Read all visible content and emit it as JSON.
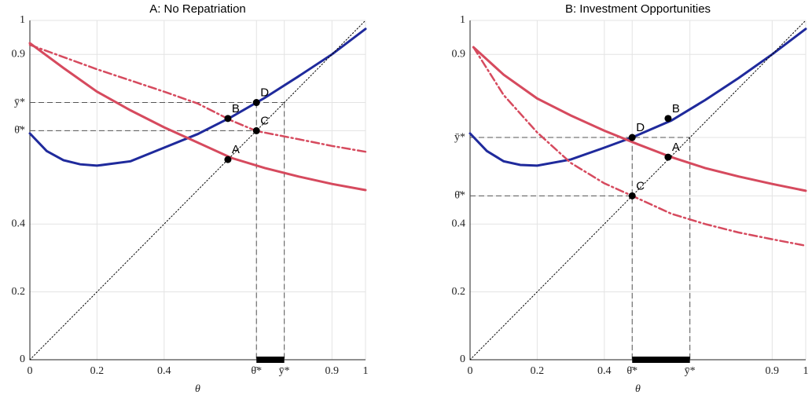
{
  "chart_data": [
    {
      "type": "line",
      "title": "A: No Repatriation",
      "xlabel": "θ",
      "xlim": [
        0,
        1
      ],
      "ylim": [
        0,
        1
      ],
      "grid": true,
      "xticks": [
        0,
        0.2,
        0.4,
        {
          "value": 0.675,
          "label": "θ̄*"
        },
        {
          "value": 0.758,
          "label": "ȳ*"
        },
        0.9,
        1
      ],
      "yticks": [
        0,
        0.2,
        0.4,
        {
          "value": 0.675,
          "label": "θ̄*"
        },
        {
          "value": 0.758,
          "label": "ȳ*"
        },
        0.9,
        1
      ],
      "series": [
        {
          "color": "#1f2a9c",
          "style": "solid",
          "x": [
            0,
            0.05,
            0.1,
            0.15,
            0.2,
            0.3,
            0.4,
            0.5,
            0.6,
            0.7,
            0.8,
            0.9,
            1
          ],
          "values": [
            0.667,
            0.615,
            0.588,
            0.576,
            0.572,
            0.585,
            0.625,
            0.665,
            0.715,
            0.772,
            0.835,
            0.9,
            0.975
          ]
        },
        {
          "color": "#d64a5e",
          "style": "solid",
          "x": [
            0,
            0.1,
            0.2,
            0.3,
            0.4,
            0.5,
            0.6,
            0.7,
            0.8,
            0.9,
            1
          ],
          "values": [
            0.933,
            0.86,
            0.79,
            0.735,
            0.685,
            0.64,
            0.595,
            0.565,
            0.54,
            0.518,
            0.5
          ]
        },
        {
          "color": "#d64a5e",
          "style": "dashdot",
          "x": [
            0,
            0.2,
            0.4,
            0.5,
            0.6,
            0.675,
            0.8,
            0.9,
            1
          ],
          "values": [
            0.928,
            0.856,
            0.79,
            0.755,
            0.705,
            0.674,
            0.65,
            0.63,
            0.613
          ]
        },
        {
          "color": "#000000",
          "style": "dotted",
          "x": [
            0,
            1
          ],
          "values": [
            0,
            1
          ]
        }
      ],
      "points": [
        {
          "label": "A",
          "x": 0.59,
          "y": 0.59
        },
        {
          "label": "B",
          "x": 0.59,
          "y": 0.711
        },
        {
          "label": "C",
          "x": 0.675,
          "y": 0.675
        },
        {
          "label": "D",
          "x": 0.675,
          "y": 0.758
        }
      ]
    },
    {
      "type": "line",
      "title": "B: Investment Opportunities",
      "xlabel": "θ",
      "xlim": [
        0,
        1
      ],
      "ylim": [
        0,
        1
      ],
      "grid": true,
      "xticks": [
        0,
        0.2,
        0.4,
        {
          "value": 0.483,
          "label": "θ̄*"
        },
        {
          "value": 0.655,
          "label": "ȳ*"
        },
        0.9,
        1
      ],
      "yticks": [
        0,
        0.2,
        0.4,
        {
          "value": 0.483,
          "label": "θ̄*"
        },
        {
          "value": 0.655,
          "label": "ȳ*"
        },
        0.9,
        1
      ],
      "series": [
        {
          "color": "#1f2a9c",
          "style": "solid",
          "x": [
            0,
            0.05,
            0.1,
            0.15,
            0.2,
            0.3,
            0.4,
            0.483,
            0.6,
            0.7,
            0.8,
            0.9,
            1
          ],
          "values": [
            0.667,
            0.615,
            0.585,
            0.574,
            0.572,
            0.59,
            0.625,
            0.655,
            0.705,
            0.765,
            0.83,
            0.9,
            0.975
          ]
        },
        {
          "color": "#d64a5e",
          "style": "solid",
          "x": [
            0.01,
            0.1,
            0.2,
            0.3,
            0.4,
            0.5,
            0.6,
            0.7,
            0.8,
            0.9,
            1
          ],
          "values": [
            0.921,
            0.84,
            0.77,
            0.72,
            0.675,
            0.635,
            0.597,
            0.565,
            0.54,
            0.518,
            0.498
          ]
        },
        {
          "color": "#d64a5e",
          "style": "dashdot",
          "x": [
            0.01,
            0.1,
            0.2,
            0.3,
            0.4,
            0.483,
            0.6,
            0.7,
            0.8,
            0.9,
            1
          ],
          "values": [
            0.921,
            0.78,
            0.67,
            0.58,
            0.52,
            0.483,
            0.43,
            0.4,
            0.375,
            0.355,
            0.336
          ]
        },
        {
          "color": "#000000",
          "style": "dotted",
          "x": [
            0,
            1
          ],
          "values": [
            0,
            1
          ]
        }
      ],
      "points": [
        {
          "label": "A",
          "x": 0.59,
          "y": 0.597
        },
        {
          "label": "B",
          "x": 0.59,
          "y": 0.711
        },
        {
          "label": "C",
          "x": 0.483,
          "y": 0.483
        },
        {
          "label": "D",
          "x": 0.483,
          "y": 0.655
        }
      ]
    }
  ]
}
